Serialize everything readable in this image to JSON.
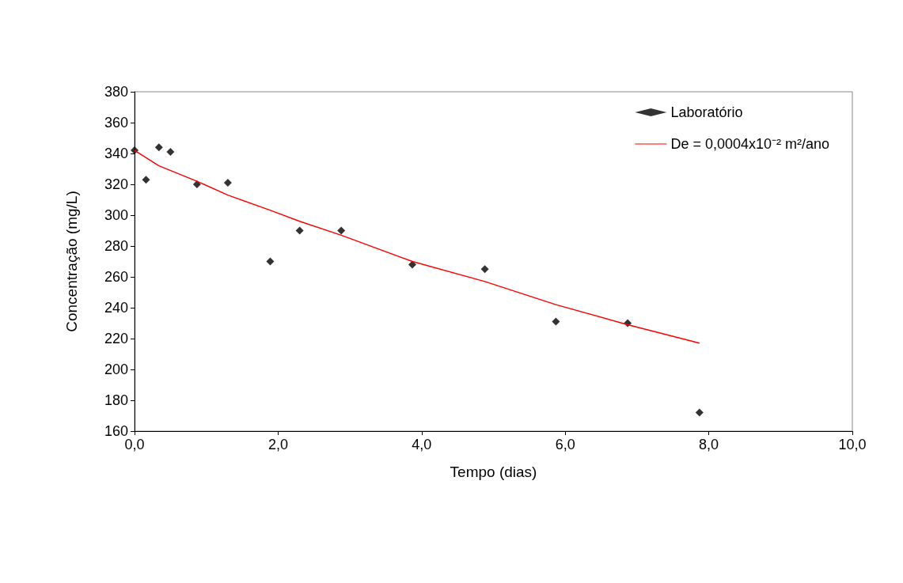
{
  "chart_data": {
    "type": "scatter",
    "xlabel": "Tempo (dias)",
    "ylabel": "Concentração (mg/L)",
    "xlim": [
      0,
      10
    ],
    "xticks": [
      {
        "value": 0,
        "label": "0,0"
      },
      {
        "value": 2,
        "label": "2,0"
      },
      {
        "value": 4,
        "label": "4,0"
      },
      {
        "value": 6,
        "label": "6,0"
      },
      {
        "value": 8,
        "label": "8,0"
      },
      {
        "value": 10,
        "label": "10,0"
      }
    ],
    "ylim": [
      160,
      380
    ],
    "yticks": [
      160,
      180,
      200,
      220,
      240,
      260,
      280,
      300,
      320,
      340,
      360,
      380
    ],
    "grid": false,
    "legend": "top right",
    "series": [
      {
        "name": "Laboratório",
        "marker": "diamond",
        "color": "#000000",
        "x": [
          0,
          0.16,
          0.34,
          0.5,
          0.87,
          1.3,
          1.89,
          2.3,
          2.88,
          3.87,
          4.88,
          5.87,
          6.87,
          7.87
        ],
        "values": [
          342,
          323,
          344,
          341,
          320,
          321,
          270,
          290,
          290,
          268,
          265,
          231,
          230,
          172
        ]
      },
      {
        "name": "De = 0,0004x10⁻² m²/ano",
        "type": "line",
        "marker": "none",
        "color": "#ff0000",
        "x": [
          0,
          0.34,
          0.87,
          1.3,
          1.9,
          2.3,
          2.88,
          3.87,
          4.88,
          5.87,
          6.87,
          7.87
        ],
        "values": [
          342,
          332,
          322,
          313,
          303,
          296,
          287,
          270,
          257,
          242,
          229,
          217
        ]
      }
    ]
  }
}
